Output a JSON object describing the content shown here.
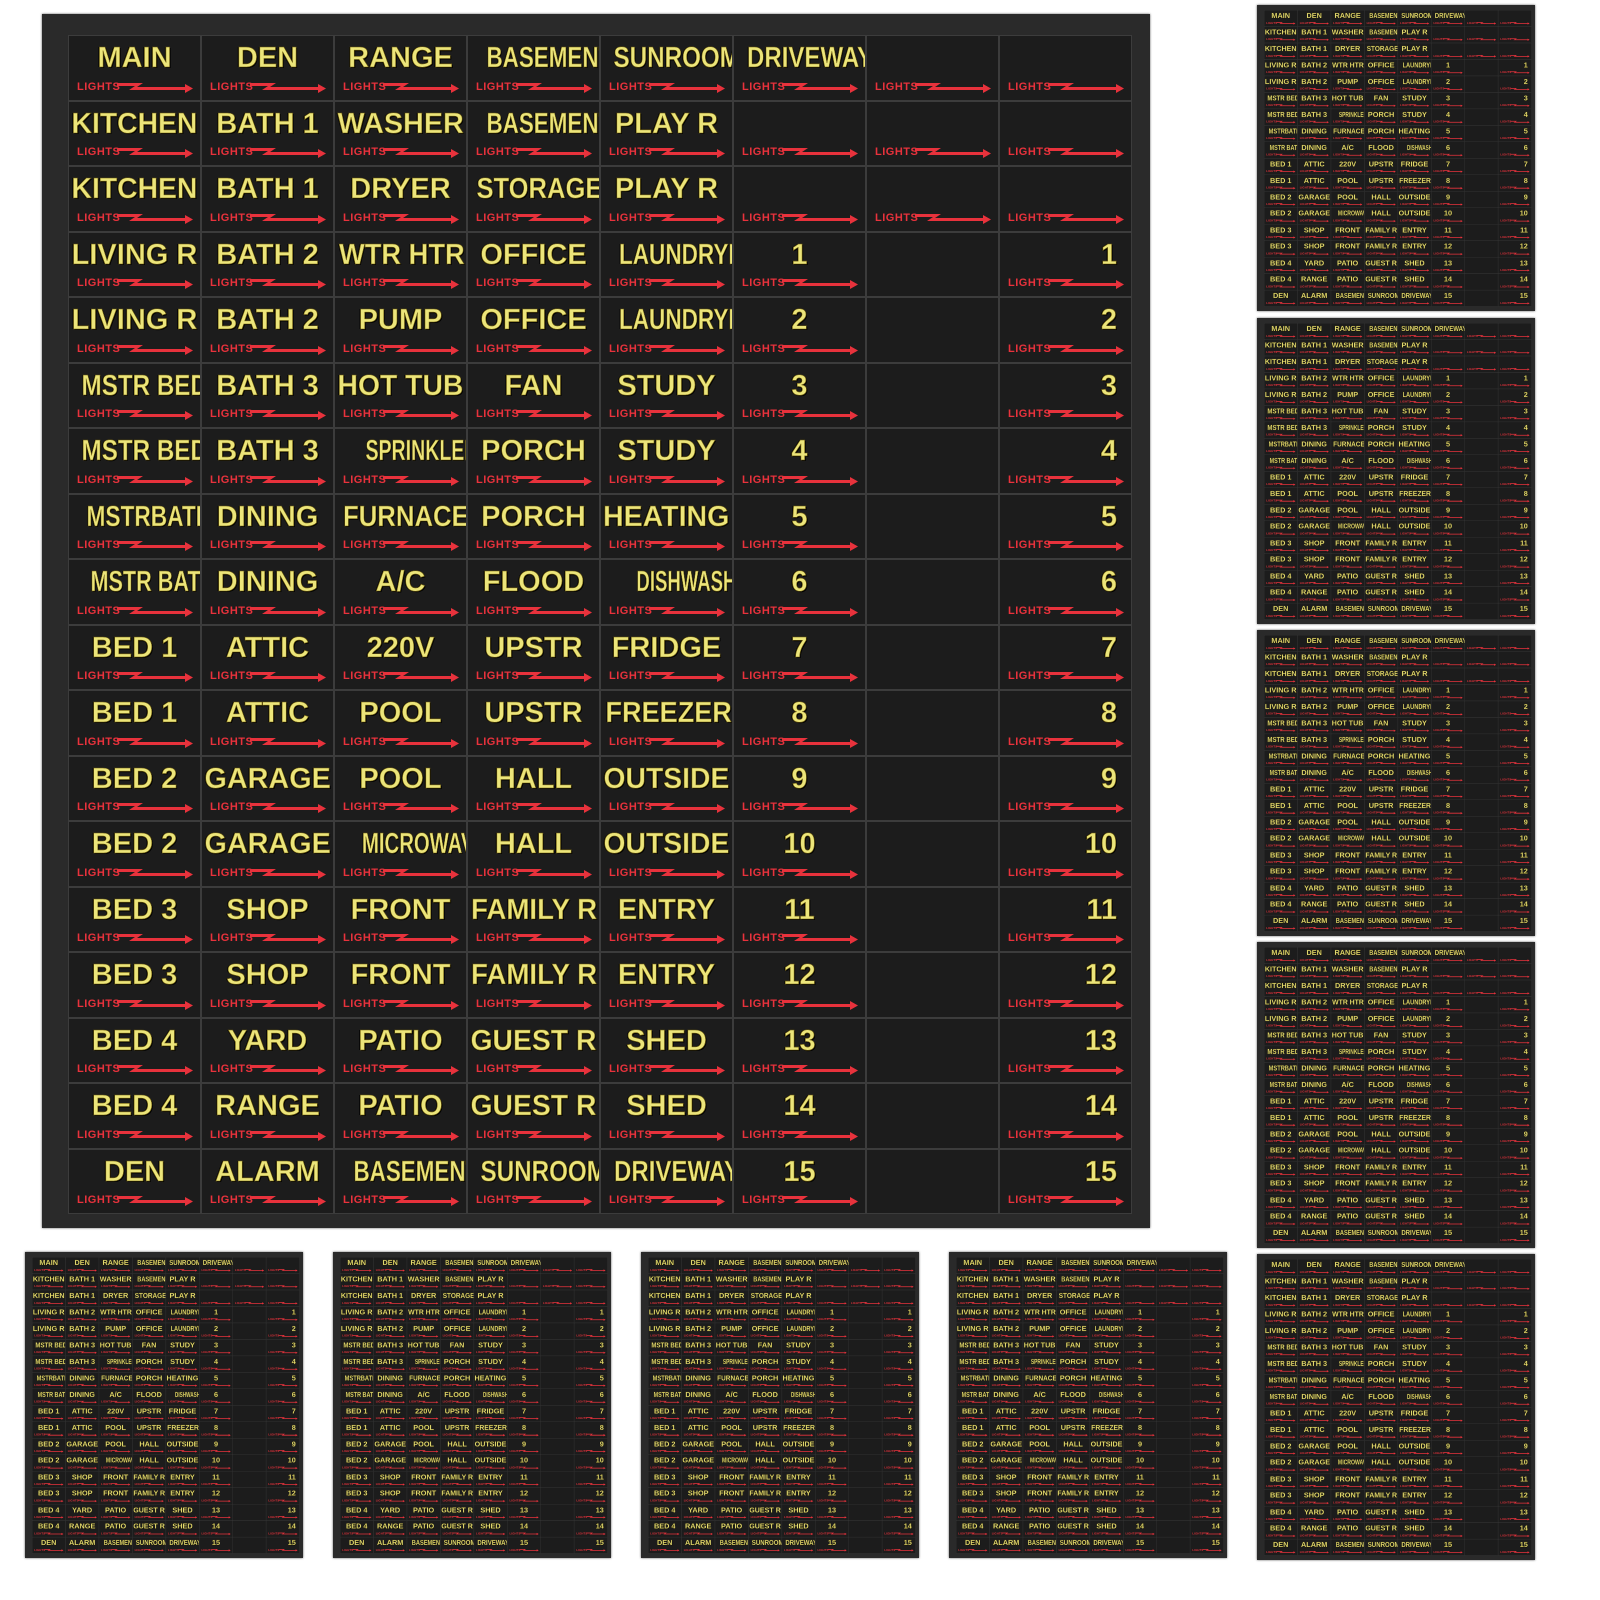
{
  "lights_label": "LIGHTS",
  "colors": {
    "sheet": "#2a2a2a",
    "label": "#ece57a",
    "lights": "#e8323c"
  },
  "icon": "lightning-arrow-icon",
  "sheet_copies_shown": 10,
  "rows": [
    {
      "cells": [
        "MAIN",
        "DEN",
        "RANGE",
        "BASEMENT",
        "SUNROOM",
        "DRIVEWAY",
        "",
        ""
      ],
      "lights": [
        1,
        1,
        1,
        1,
        1,
        1,
        1,
        1
      ]
    },
    {
      "cells": [
        "KITCHEN",
        "BATH 1",
        "WASHER",
        "BASEMENT",
        "PLAY R",
        "",
        "",
        ""
      ],
      "lights": [
        1,
        1,
        1,
        1,
        1,
        1,
        1,
        1
      ]
    },
    {
      "cells": [
        "KITCHEN",
        "BATH 1",
        "DRYER",
        "STORAGE",
        "PLAY R",
        "",
        "",
        ""
      ],
      "lights": [
        1,
        1,
        1,
        1,
        1,
        1,
        1,
        1
      ]
    },
    {
      "cells": [
        "LIVING R",
        "BATH 2",
        "WTR HTR",
        "OFFICE",
        "LAUNDRYR",
        "1",
        "",
        "1"
      ],
      "lights": [
        1,
        1,
        1,
        1,
        1,
        1,
        0,
        1
      ]
    },
    {
      "cells": [
        "LIVING R",
        "BATH 2",
        "PUMP",
        "OFFICE",
        "LAUNDRYR",
        "2",
        "",
        "2"
      ],
      "lights": [
        1,
        1,
        1,
        1,
        1,
        1,
        0,
        1
      ]
    },
    {
      "cells": [
        "MSTR BED",
        "BATH 3",
        "HOT TUB",
        "FAN",
        "STUDY",
        "3",
        "",
        "3"
      ],
      "lights": [
        1,
        1,
        1,
        1,
        1,
        1,
        0,
        1
      ]
    },
    {
      "cells": [
        "MSTR BED",
        "BATH 3",
        "SPRINKLERS",
        "PORCH",
        "STUDY",
        "4",
        "",
        "4"
      ],
      "lights": [
        1,
        1,
        1,
        1,
        1,
        1,
        0,
        1
      ]
    },
    {
      "cells": [
        "MSTRBATH",
        "DINING",
        "FURNACE",
        "PORCH",
        "HEATING",
        "5",
        "",
        "5"
      ],
      "lights": [
        1,
        1,
        1,
        1,
        1,
        1,
        0,
        1
      ]
    },
    {
      "cells": [
        "MSTR BATH",
        "DINING",
        "A/C",
        "FLOOD",
        "DISHWASHER",
        "6",
        "",
        "6"
      ],
      "lights": [
        1,
        1,
        1,
        1,
        1,
        1,
        0,
        1
      ]
    },
    {
      "cells": [
        "BED 1",
        "ATTIC",
        "220V",
        "UPSTR",
        "FRIDGE",
        "7",
        "",
        "7"
      ],
      "lights": [
        1,
        1,
        1,
        1,
        1,
        1,
        0,
        1
      ]
    },
    {
      "cells": [
        "BED 1",
        "ATTIC",
        "POOL",
        "UPSTR",
        "FREEZER",
        "8",
        "",
        "8"
      ],
      "lights": [
        1,
        1,
        1,
        1,
        1,
        1,
        0,
        1
      ]
    },
    {
      "cells": [
        "BED 2",
        "GARAGE",
        "POOL",
        "HALL",
        "OUTSIDE",
        "9",
        "",
        "9"
      ],
      "lights": [
        1,
        1,
        1,
        1,
        1,
        1,
        0,
        1
      ]
    },
    {
      "cells": [
        "BED 2",
        "GARAGE",
        "MICROWAVE",
        "HALL",
        "OUTSIDE",
        "10",
        "",
        "10"
      ],
      "lights": [
        1,
        1,
        1,
        1,
        1,
        1,
        0,
        1
      ]
    },
    {
      "cells": [
        "BED 3",
        "SHOP",
        "FRONT",
        "FAMILY R",
        "ENTRY",
        "11",
        "",
        "11"
      ],
      "lights": [
        1,
        1,
        1,
        1,
        1,
        1,
        0,
        1
      ]
    },
    {
      "cells": [
        "BED 3",
        "SHOP",
        "FRONT",
        "FAMILY R",
        "ENTRY",
        "12",
        "",
        "12"
      ],
      "lights": [
        1,
        1,
        1,
        1,
        1,
        1,
        0,
        1
      ]
    },
    {
      "cells": [
        "BED 4",
        "YARD",
        "PATIO",
        "GUEST R",
        "SHED",
        "13",
        "",
        "13"
      ],
      "lights": [
        1,
        1,
        1,
        1,
        1,
        1,
        0,
        1
      ]
    },
    {
      "cells": [
        "BED 4",
        "RANGE",
        "PATIO",
        "GUEST R",
        "SHED",
        "14",
        "",
        "14"
      ],
      "lights": [
        1,
        1,
        1,
        1,
        1,
        1,
        0,
        1
      ]
    },
    {
      "cells": [
        "DEN",
        "ALARM",
        "BASEMENT",
        "SUNROOM",
        "DRIVEWAY",
        "15",
        "",
        "15"
      ],
      "lights": [
        1,
        1,
        1,
        1,
        1,
        1,
        0,
        1
      ]
    }
  ]
}
